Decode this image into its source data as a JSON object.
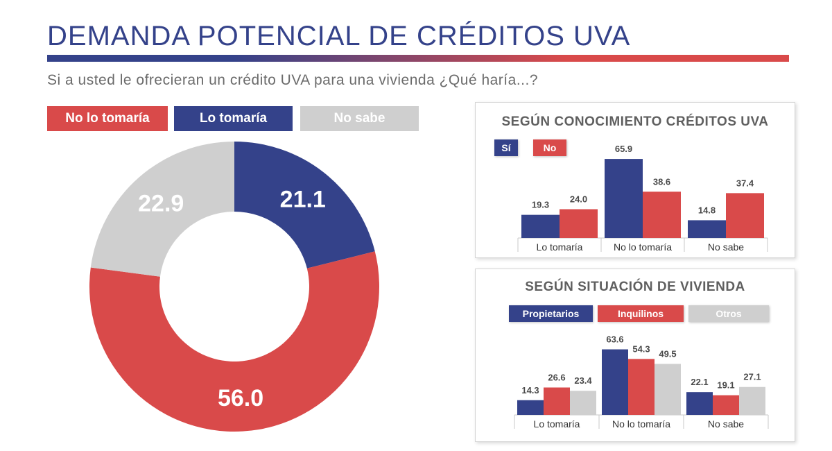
{
  "header": {
    "title": "DEMANDA POTENCIAL DE CRÉDITOS UVA",
    "subtitle": "Si a usted le ofrecieran un crédito UVA para una vivienda ¿Qué haría...?"
  },
  "colors": {
    "blue": "#34428a",
    "red": "#d94a4a",
    "gray": "#cfcfcf"
  },
  "legend": {
    "no": "No lo tomaría",
    "yes": "Lo tomaría",
    "unsure": "No sabe"
  },
  "chart_data": [
    {
      "type": "pie",
      "title": "",
      "labels": [
        "Lo tomaría",
        "No lo tomaría",
        "No sabe"
      ],
      "values": [
        21.1,
        56.0,
        22.9
      ],
      "value_labels": [
        "21.1",
        "56.0",
        "22.9"
      ],
      "colors": [
        "#34428a",
        "#d94a4a",
        "#cfcfcf"
      ],
      "donut": true
    },
    {
      "type": "bar",
      "title": "SEGÚN CONOCIMIENTO CRÉDITOS UVA",
      "categories": [
        "Lo tomaría",
        "No lo tomaría",
        "No sabe"
      ],
      "series": [
        {
          "name": "Sí",
          "values": [
            19.3,
            65.9,
            14.8
          ],
          "color": "#34428a"
        },
        {
          "name": "No",
          "values": [
            24.0,
            38.6,
            37.4
          ],
          "color": "#d94a4a"
        }
      ],
      "ylim": [
        0,
        70
      ],
      "legend_position": "top-left"
    },
    {
      "type": "bar",
      "title": "SEGÚN SITUACIÓN DE VIVIENDA",
      "categories": [
        "Lo tomaría",
        "No lo tomaría",
        "No sabe"
      ],
      "series": [
        {
          "name": "Propietarios",
          "values": [
            14.3,
            63.6,
            22.1
          ],
          "color": "#34428a"
        },
        {
          "name": "Inquilinos",
          "values": [
            26.6,
            54.3,
            19.1
          ],
          "color": "#d94a4a"
        },
        {
          "name": "Otros",
          "values": [
            23.4,
            49.5,
            27.1
          ],
          "color": "#cfcfcf"
        }
      ],
      "ylim": [
        0,
        70
      ],
      "legend_position": "top"
    }
  ]
}
